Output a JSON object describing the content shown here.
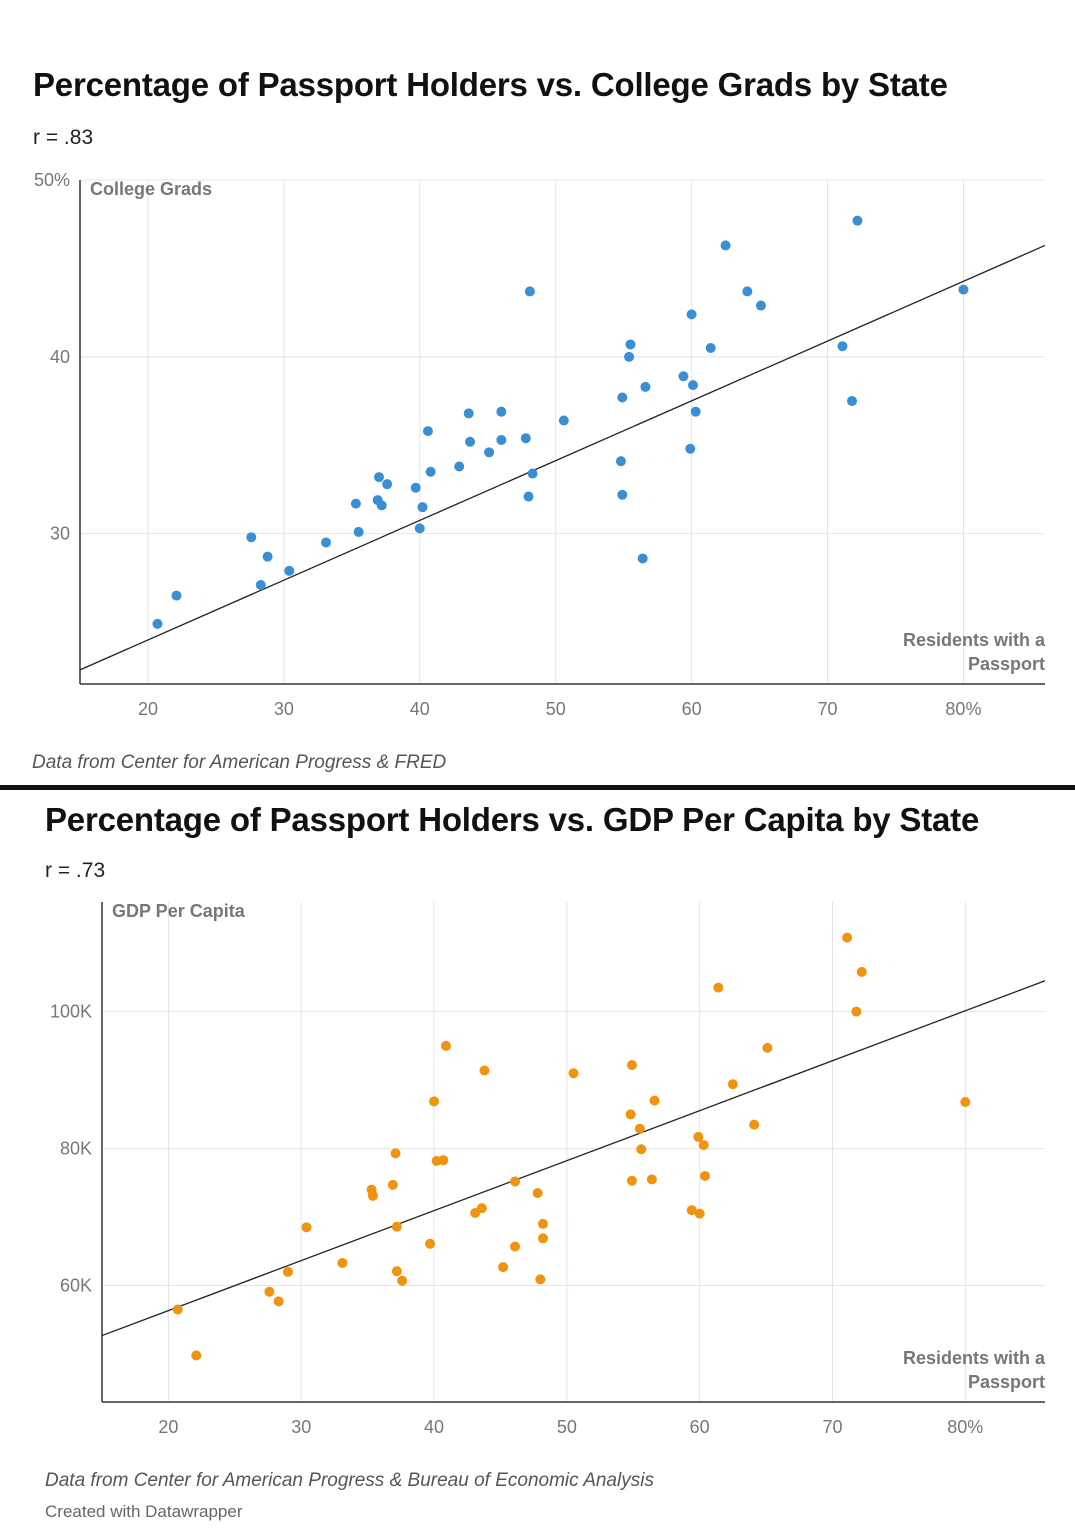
{
  "chart_data": [
    {
      "type": "scatter",
      "title": "Percentage of Passport Holders vs. College Grads by State",
      "subtitle": "r = .83",
      "source": "Data from Center for American Progress & FRED",
      "xlabel": "Residents with a Passport",
      "ylabel": "College Grads",
      "xlim": [
        15,
        86
      ],
      "ylim": [
        21.5,
        50
      ],
      "xticks": [
        20,
        30,
        40,
        50,
        60,
        70,
        80
      ],
      "xtick_labels": [
        "20",
        "30",
        "40",
        "50",
        "60",
        "70",
        "80%"
      ],
      "yticks": [
        30,
        40,
        50
      ],
      "ytick_labels": [
        "30",
        "40",
        "50%"
      ],
      "grid": true,
      "color": "#3a8fd4",
      "trendline": {
        "x": [
          15,
          86
        ],
        "y": [
          22.3,
          46.3
        ]
      },
      "x": [
        20.7,
        22.1,
        27.6,
        28.3,
        28.8,
        30.4,
        33.1,
        35.3,
        35.5,
        36.9,
        37.0,
        37.2,
        37.6,
        39.7,
        40.0,
        40.2,
        40.6,
        40.8,
        42.9,
        43.6,
        43.7,
        45.1,
        46.0,
        46.0,
        47.8,
        48.0,
        48.1,
        48.3,
        50.6,
        54.8,
        54.9,
        54.9,
        55.4,
        55.5,
        56.4,
        56.6,
        59.4,
        59.9,
        60.0,
        60.1,
        60.3,
        61.4,
        62.5,
        64.1,
        65.1,
        71.1,
        71.8,
        72.2,
        80.0
      ],
      "y": [
        24.9,
        26.5,
        29.8,
        27.1,
        28.7,
        27.9,
        29.5,
        31.7,
        30.1,
        31.9,
        33.2,
        31.6,
        32.8,
        32.6,
        30.3,
        31.5,
        35.8,
        33.5,
        33.8,
        36.8,
        35.2,
        34.6,
        36.9,
        35.3,
        35.4,
        32.1,
        43.7,
        33.4,
        36.4,
        34.1,
        37.7,
        32.2,
        40.0,
        40.7,
        28.6,
        38.3,
        38.9,
        34.8,
        42.4,
        38.4,
        36.9,
        40.5,
        46.3,
        43.7,
        42.9,
        40.6,
        37.5,
        47.7,
        43.8
      ]
    },
    {
      "type": "scatter",
      "title": "Percentage of Passport Holders vs. GDP Per Capita by State",
      "subtitle": "r = .73",
      "source": "Data from Center for American Progress & Bureau of Economic Analysis",
      "credit": "Created with Datawrapper",
      "xlabel": "Residents with a Passport",
      "ylabel": "GDP Per Capita",
      "xlim": [
        15,
        86
      ],
      "ylim": [
        43000,
        116000
      ],
      "xticks": [
        20,
        30,
        40,
        50,
        60,
        70,
        80
      ],
      "xtick_labels": [
        "20",
        "30",
        "40",
        "50",
        "60",
        "70",
        "80%"
      ],
      "yticks": [
        60000,
        80000,
        100000
      ],
      "ytick_labels": [
        "60K",
        "80K",
        "100K"
      ],
      "grid": true,
      "color": "#f0930f",
      "trendline": {
        "x": [
          15,
          86
        ],
        "y": [
          52700,
          104500
        ]
      },
      "x": [
        20.7,
        22.1,
        27.6,
        28.3,
        29.0,
        30.4,
        33.1,
        35.3,
        35.4,
        36.9,
        37.1,
        37.2,
        37.2,
        37.6,
        39.7,
        40.0,
        40.2,
        40.7,
        40.9,
        43.1,
        43.6,
        43.8,
        45.2,
        46.1,
        46.1,
        47.8,
        48.0,
        48.2,
        48.2,
        50.5,
        54.8,
        54.9,
        54.9,
        55.5,
        55.6,
        56.4,
        56.6,
        59.4,
        59.9,
        60.0,
        60.3,
        60.4,
        61.4,
        62.5,
        64.1,
        65.1,
        71.1,
        71.8,
        72.2,
        80.0
      ],
      "y": [
        56500,
        49800,
        59100,
        57700,
        62000,
        68500,
        63300,
        74000,
        73100,
        74700,
        79300,
        62100,
        68600,
        60700,
        66100,
        86900,
        78200,
        78300,
        95000,
        70600,
        71300,
        91400,
        62700,
        75200,
        65700,
        73500,
        60900,
        69000,
        66900,
        91000,
        85000,
        92200,
        75300,
        82900,
        79900,
        75500,
        87000,
        71000,
        81700,
        70500,
        80500,
        76000,
        103500,
        89400,
        83500,
        94700,
        110800,
        100000,
        105800,
        86800
      ]
    }
  ]
}
